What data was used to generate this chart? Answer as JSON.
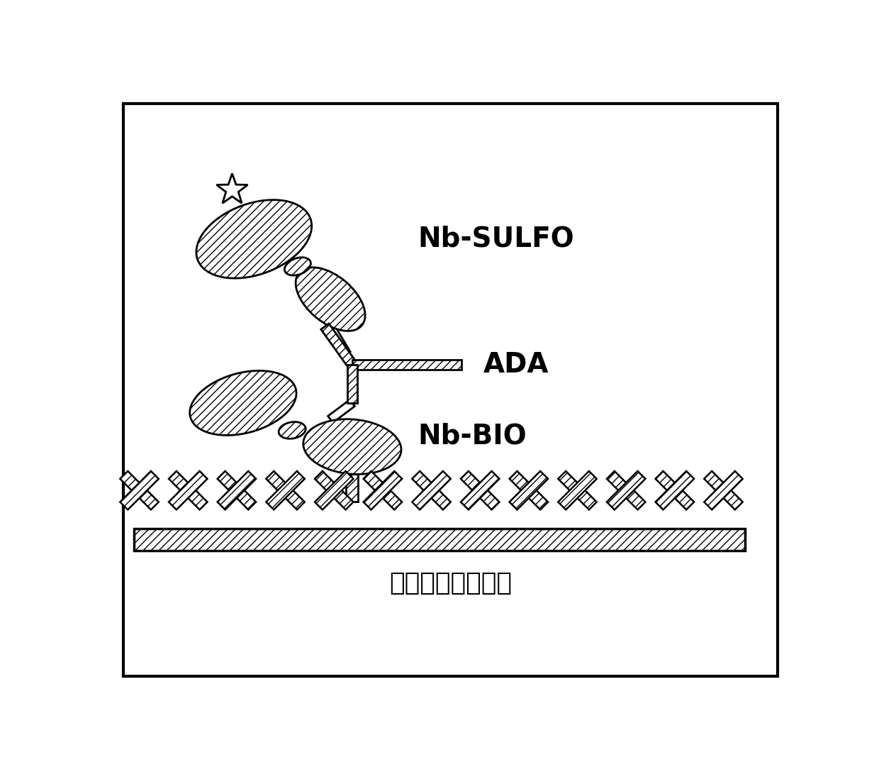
{
  "label_nb_sulfo": "Nb-SULFO",
  "label_ada": "ADA",
  "label_nb_bio": "Nb-BIO",
  "label_streptavidin": "链霞抗生物素蛋白",
  "bg_color": "#ffffff",
  "text_color": "#000000",
  "font_size_labels": 28,
  "font_size_chinese": 26,
  "figsize": [
    12.4,
    10.88
  ],
  "dpi": 100
}
